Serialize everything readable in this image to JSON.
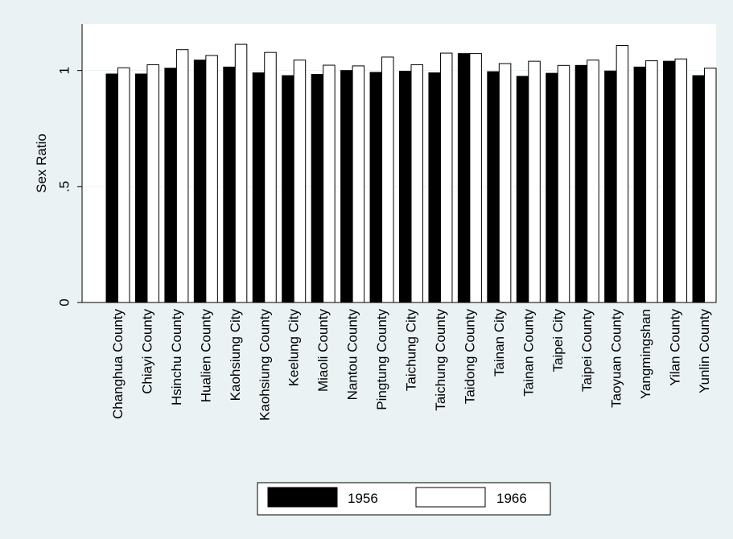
{
  "chart_data": {
    "type": "bar",
    "title": "",
    "xlabel": "",
    "ylabel": "Sex Ratio",
    "ylim": [
      0,
      1.2
    ],
    "yticks": [
      0,
      0.5,
      1
    ],
    "ytick_labels": [
      "0",
      ".5",
      "1"
    ],
    "grid": true,
    "legend_position": "bottom",
    "categories": [
      "Changhua County",
      "Chiayi County",
      "Hsinchu County",
      "Hualien County",
      "Kaohsiung City",
      "Kaohsiung County",
      "Keelung City",
      "Miaoli County",
      "Nantou County",
      "Pingtung County",
      "Taichung City",
      "Taichung County",
      "Taidong County",
      "Tainan City",
      "Tainan County",
      "Taipei City",
      "Taipei County",
      "Taoyuan County",
      "Yangmingshan",
      "Yilan County",
      "Yunlin County"
    ],
    "series": [
      {
        "name": "1956",
        "color": "#000000",
        "values": [
          0.985,
          0.985,
          1.01,
          1.045,
          1.015,
          0.99,
          0.978,
          0.983,
          1.0,
          0.992,
          0.997,
          0.99,
          1.073,
          0.995,
          0.975,
          0.988,
          1.022,
          0.998,
          1.015,
          1.04,
          0.978
        ]
      },
      {
        "name": "1966",
        "color": "#ffffff",
        "values": [
          1.012,
          1.025,
          1.09,
          1.065,
          1.113,
          1.078,
          1.045,
          1.023,
          1.02,
          1.058,
          1.025,
          1.075,
          1.073,
          1.03,
          1.04,
          1.022,
          1.045,
          1.108,
          1.042,
          1.05,
          1.01
        ]
      }
    ]
  },
  "colors": {
    "background": "#eaf2f3",
    "plot_background": "#ffffff",
    "gridline": "#eaf2f3"
  }
}
